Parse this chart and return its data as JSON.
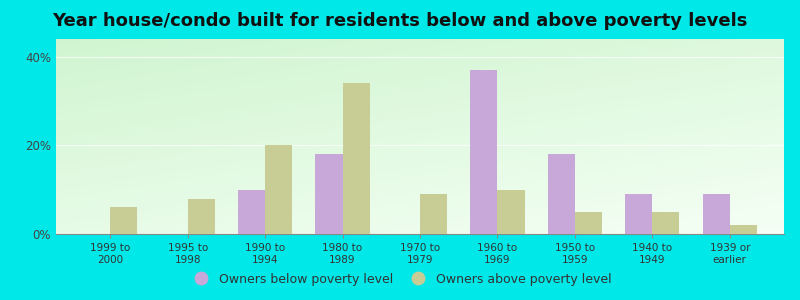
{
  "title": "Year house/condo built for residents below and above poverty levels",
  "categories": [
    "1999 to\n2000",
    "1995 to\n1998",
    "1990 to\n1994",
    "1980 to\n1989",
    "1970 to\n1979",
    "1960 to\n1969",
    "1950 to\n1959",
    "1940 to\n1949",
    "1939 or\nearlier"
  ],
  "below_poverty": [
    0,
    0,
    10,
    18,
    0,
    37,
    18,
    9,
    9
  ],
  "above_poverty": [
    6,
    8,
    20,
    34,
    9,
    10,
    5,
    5,
    2
  ],
  "below_color": "#c8a8d8",
  "above_color": "#c8cd96",
  "ylabel_ticks": [
    "0%",
    "20%",
    "40%"
  ],
  "yticks": [
    0,
    20,
    40
  ],
  "ylim": [
    0,
    44
  ],
  "bg_color_tl": "#c8e8c0",
  "bg_color_tr": "#e8f8e0",
  "bg_color_bl": "#e0f0e8",
  "bg_color_br": "#f0f8f0",
  "outer_bg": "#00e8e8",
  "legend_below": "Owners below poverty level",
  "legend_above": "Owners above poverty level",
  "bar_width": 0.35,
  "title_fontsize": 13
}
